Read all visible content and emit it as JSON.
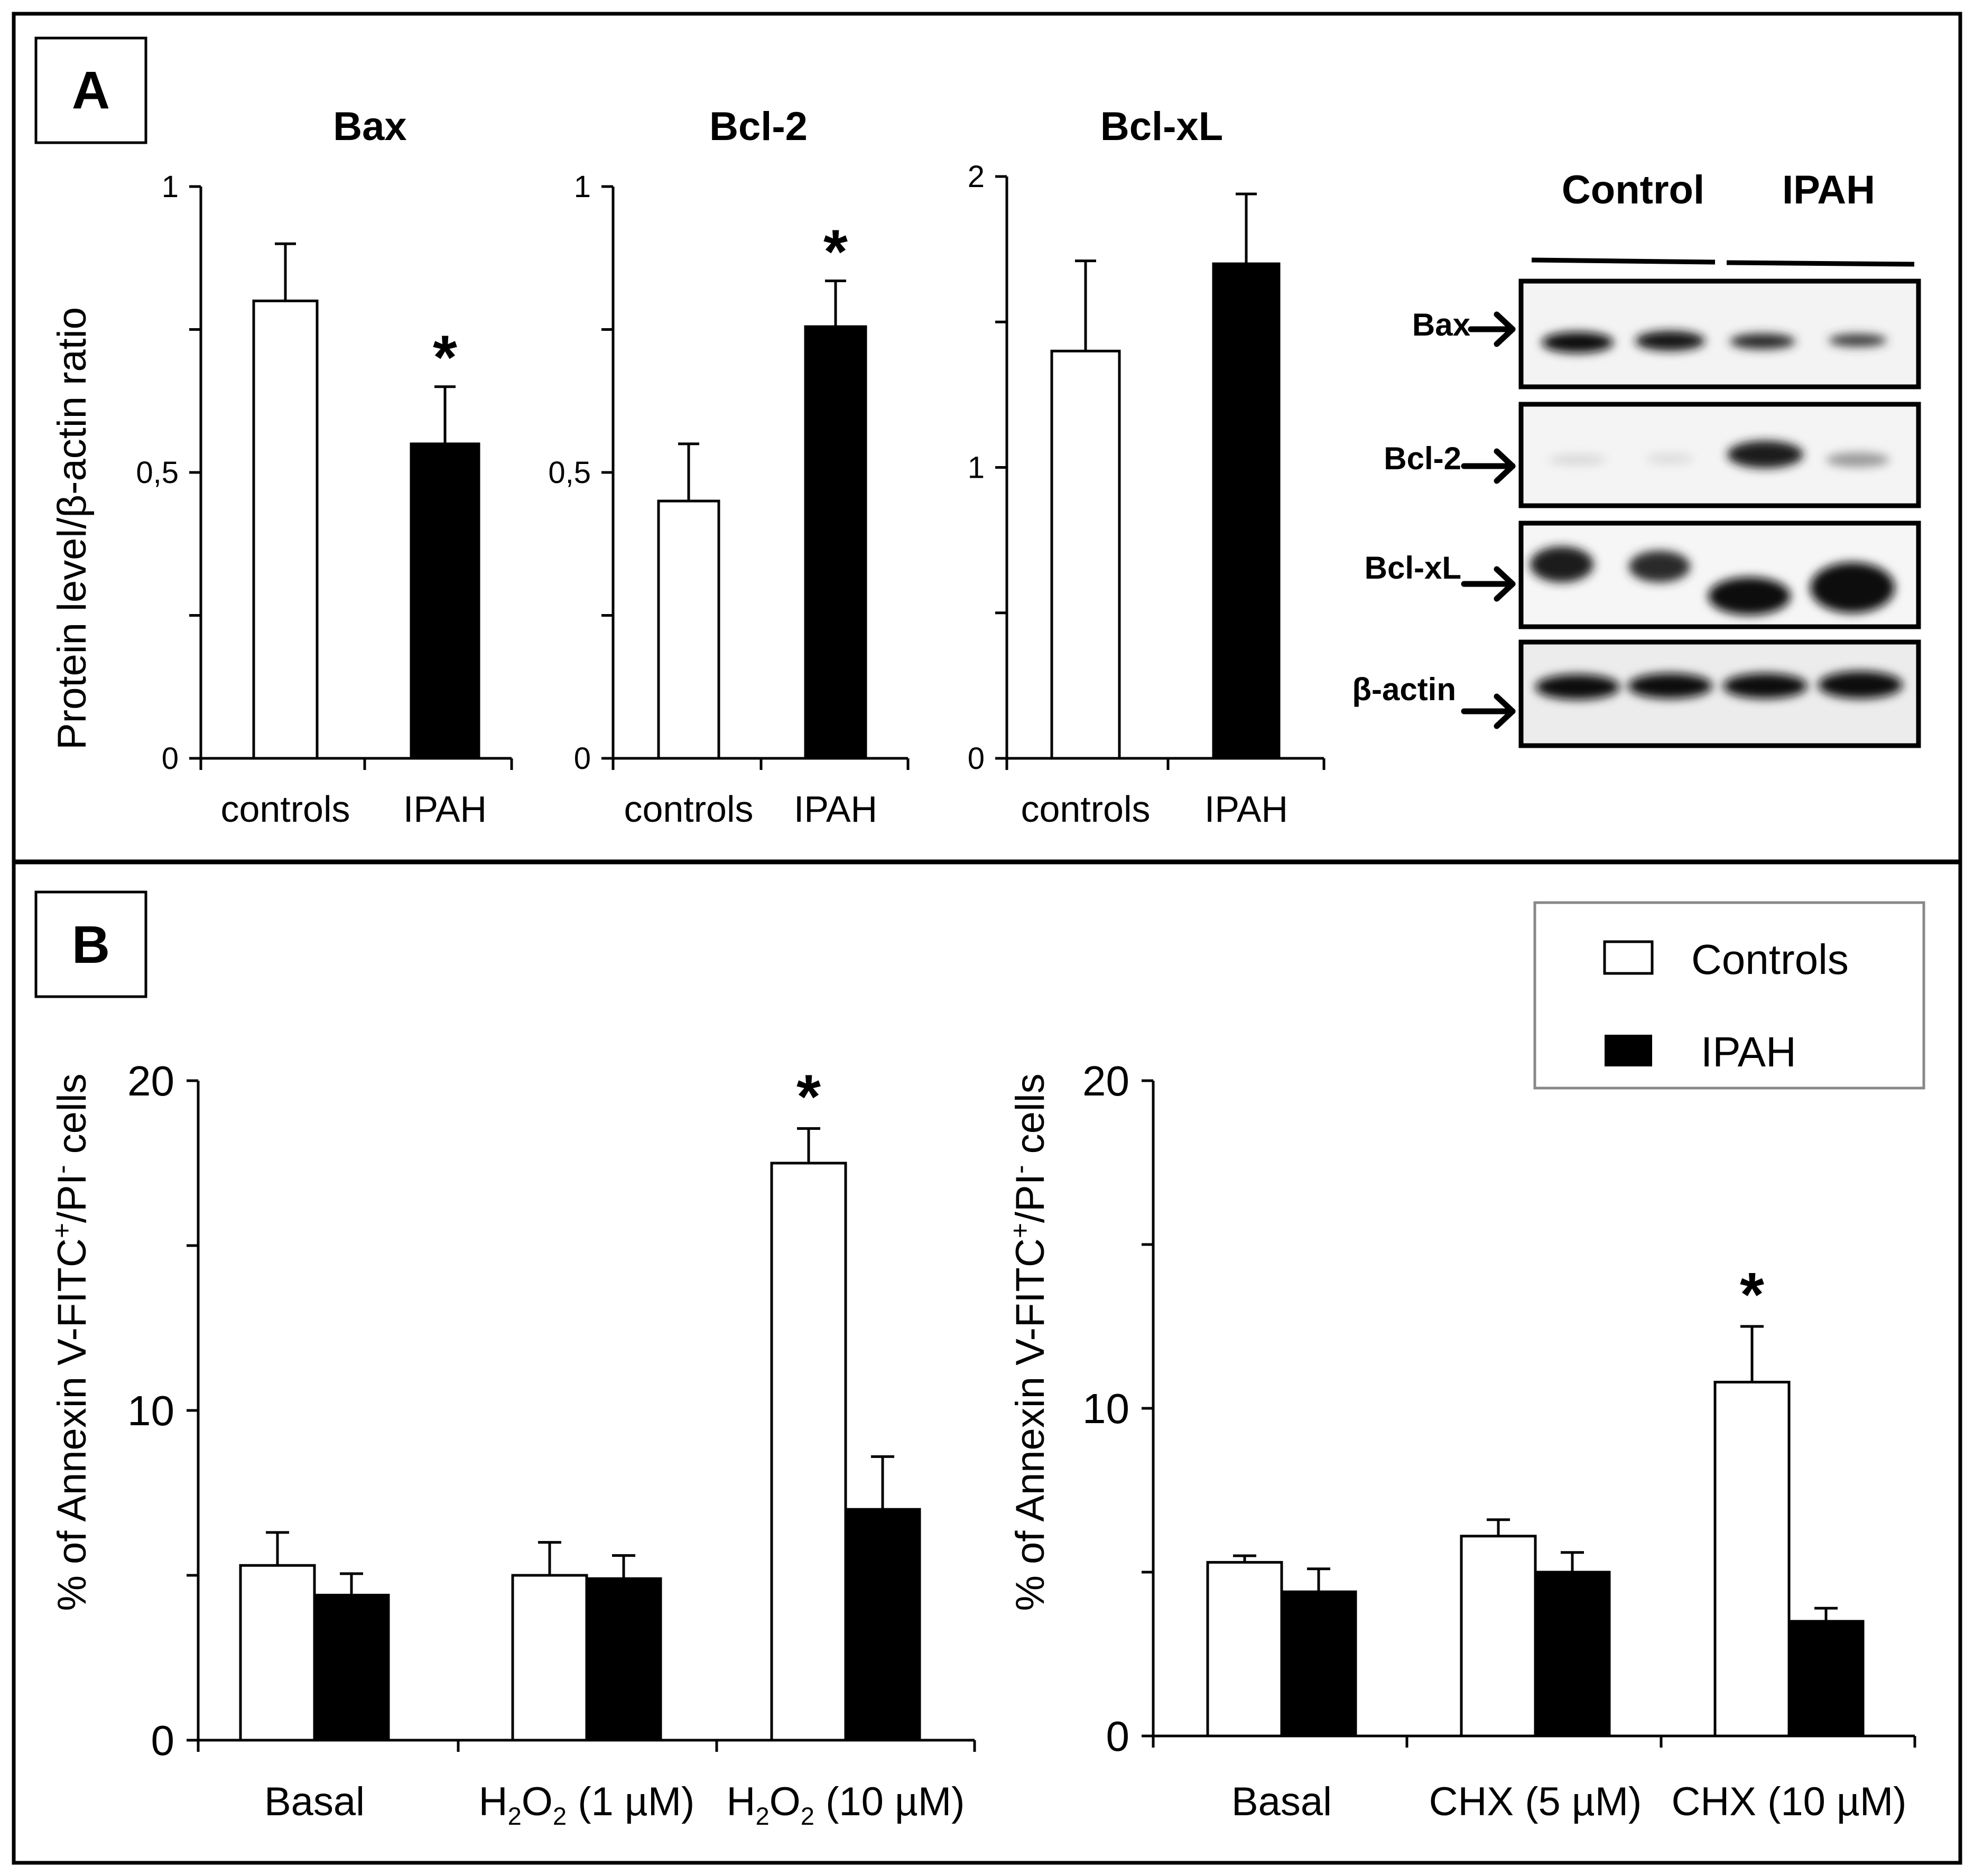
{
  "colors": {
    "controls": "#ffffff",
    "ipah": "#000000",
    "frame": "#000000",
    "legend_border": "#888888"
  },
  "panel_a": {
    "label": "A",
    "ylabel": "Protein  level/β-actin ratio",
    "blot": {
      "groups": [
        "Control",
        "IPAH"
      ],
      "rows": [
        "Bax",
        "Bcl-2",
        "Bcl-xL",
        "β-actin"
      ]
    }
  },
  "panel_b": {
    "label": "B",
    "ylabel": "% of Annexin V-FITC+/PI- cells",
    "legend": {
      "controls": "Controls",
      "ipah": "IPAH"
    }
  },
  "chart_data": [
    {
      "id": "bax",
      "type": "bar",
      "title": "Bax",
      "categories": [
        "controls",
        "IPAH"
      ],
      "values": [
        0.8,
        0.55
      ],
      "errors": [
        0.1,
        0.1
      ],
      "significance": [
        false,
        true
      ],
      "yticks": [
        "0",
        "0,5",
        "1"
      ],
      "ylim": [
        0,
        1
      ],
      "ylabel": "Protein  level/β-actin ratio"
    },
    {
      "id": "bcl2",
      "type": "bar",
      "title": "Bcl-2",
      "categories": [
        "controls",
        "IPAH"
      ],
      "values": [
        0.45,
        0.755
      ],
      "errors": [
        0.1,
        0.08
      ],
      "significance": [
        false,
        true
      ],
      "yticks": [
        "0",
        "0,5",
        "1"
      ],
      "ylim": [
        0,
        1
      ]
    },
    {
      "id": "bclxl",
      "type": "bar",
      "title": "Bcl-xL",
      "categories": [
        "controls",
        "IPAH"
      ],
      "values": [
        1.4,
        1.7
      ],
      "errors": [
        0.31,
        0.24
      ],
      "significance": [
        false,
        false
      ],
      "yticks": [
        "0",
        "1",
        "2"
      ],
      "ylim": [
        0,
        2
      ]
    },
    {
      "id": "h2o2",
      "type": "bar",
      "categories": [
        "Basal",
        "H2O2 (1 µM)",
        "H2O2 (10 µM)"
      ],
      "series": [
        {
          "name": "Controls",
          "values": [
            5.3,
            5.0,
            17.5
          ],
          "errors": [
            1.0,
            1.0,
            1.05
          ]
        },
        {
          "name": "IPAH",
          "values": [
            4.4,
            4.9,
            7.0
          ],
          "errors": [
            0.65,
            0.7,
            1.6
          ]
        }
      ],
      "significance": [
        "",
        "",
        "Controls"
      ],
      "yticks": [
        "0",
        "10",
        "20"
      ],
      "ylim": [
        0,
        20
      ],
      "ylabel": "% of Annexin V-FITC+/PI- cells"
    },
    {
      "id": "chx",
      "type": "bar",
      "categories": [
        "Basal",
        "CHX (5 µM)",
        "CHX (10 µM)"
      ],
      "series": [
        {
          "name": "Controls",
          "values": [
            5.3,
            6.1,
            10.8
          ],
          "errors": [
            0.2,
            0.5,
            1.7
          ]
        },
        {
          "name": "IPAH",
          "values": [
            4.4,
            5.0,
            3.5
          ],
          "errors": [
            0.7,
            0.6,
            0.4
          ]
        }
      ],
      "significance": [
        "",
        "",
        "Controls"
      ],
      "yticks": [
        "0",
        "10",
        "20"
      ],
      "ylim": [
        0,
        20
      ],
      "ylabel": "% of Annexin V-FITC+/PI- cells"
    }
  ]
}
